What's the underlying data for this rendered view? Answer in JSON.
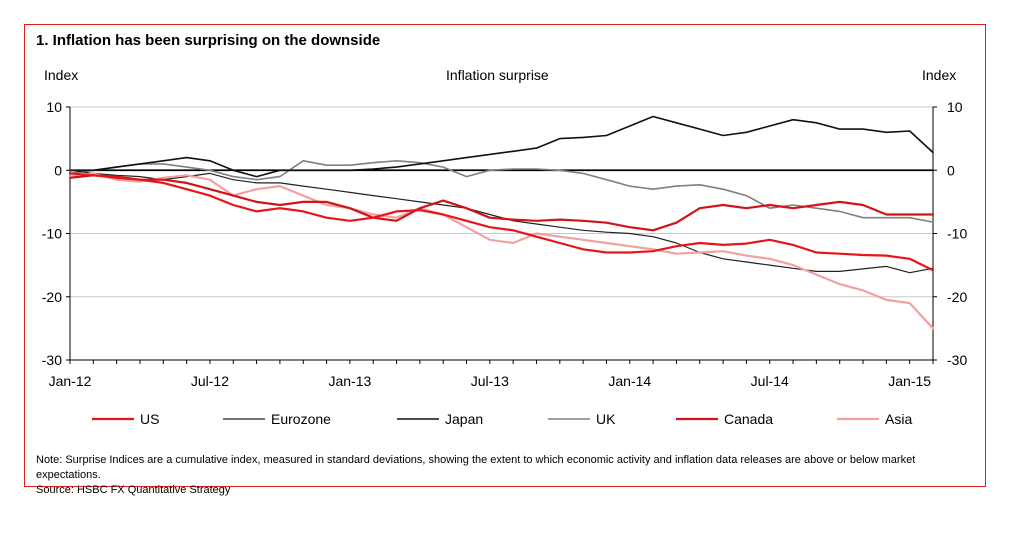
{
  "chart_data": {
    "type": "line",
    "title": "1. Inflation has been surprising on the downside",
    "subtitle": "Inflation surprise",
    "ylabel_left": "Index",
    "ylabel_right": "Index",
    "ylim": [
      -30,
      10
    ],
    "yticks": [
      10,
      0,
      -10,
      -20,
      -30
    ],
    "ytick_labels": [
      "10",
      "0",
      "-10",
      "-20",
      "-30"
    ],
    "xtick_labels": [
      "Jan-12",
      "Jul-12",
      "Jan-13",
      "Jul-13",
      "Jan-14",
      "Jul-14",
      "Jan-15"
    ],
    "x": [
      "Jan-12",
      "Feb-12",
      "Mar-12",
      "Apr-12",
      "May-12",
      "Jun-12",
      "Jul-12",
      "Aug-12",
      "Sep-12",
      "Oct-12",
      "Nov-12",
      "Dec-12",
      "Jan-13",
      "Feb-13",
      "Mar-13",
      "Apr-13",
      "May-13",
      "Jun-13",
      "Jul-13",
      "Aug-13",
      "Sep-13",
      "Oct-13",
      "Nov-13",
      "Dec-13",
      "Jan-14",
      "Feb-14",
      "Mar-14",
      "Apr-14",
      "May-14",
      "Jun-14",
      "Jul-14",
      "Aug-14",
      "Sep-14",
      "Oct-14",
      "Nov-14",
      "Dec-14",
      "Jan-15",
      "Feb-15"
    ],
    "grid": true,
    "legend_position": "bottom",
    "series": [
      {
        "name": "US",
        "color": "#e8141b",
        "width": 2.2,
        "values": [
          -0.5,
          -0.8,
          -1.2,
          -1.5,
          -2,
          -3,
          -4,
          -5.5,
          -6.5,
          -6,
          -6.5,
          -7.5,
          -8,
          -7.5,
          -6.5,
          -6.3,
          -7,
          -8,
          -9,
          -9.5,
          -10.5,
          -11.5,
          -12.5,
          -13,
          -13,
          -12.8,
          -12,
          -11.5,
          -11.8,
          -11.6,
          -11,
          -11.8,
          -13,
          -13.2,
          -13.4,
          -13.5,
          -14,
          -15.8
        ]
      },
      {
        "name": "Eurozone",
        "color": "#222222",
        "width": 1.2,
        "values": [
          0,
          -0.5,
          -0.8,
          -1,
          -1.5,
          -1,
          -0.5,
          -1.5,
          -2,
          -2,
          -2.5,
          -3,
          -3.5,
          -4,
          -4.5,
          -5,
          -5.5,
          -6,
          -7,
          -8,
          -8.5,
          -9,
          -9.5,
          -9.8,
          -10,
          -10.5,
          -11.5,
          -13,
          -14,
          -14.5,
          -15,
          -15.5,
          -16,
          -16,
          -15.6,
          -15.2,
          -16.2,
          -15.5
        ]
      },
      {
        "name": "Japan",
        "color": "#111111",
        "width": 1.6,
        "values": [
          0,
          0,
          0.5,
          1,
          1.5,
          2,
          1.5,
          0,
          -1,
          0,
          0,
          0,
          0,
          0.2,
          0.5,
          1,
          1.5,
          2,
          2.5,
          3,
          3.5,
          5,
          5.2,
          5.5,
          7,
          8.5,
          7.5,
          6.5,
          5.5,
          6,
          7,
          8,
          7.5,
          6.5,
          6.5,
          6,
          6.2,
          2.8
        ]
      },
      {
        "name": "UK",
        "color": "#808080",
        "width": 1.6,
        "values": [
          -0.5,
          0,
          0.5,
          1,
          1,
          0.5,
          0,
          -1,
          -1.5,
          -1,
          1.5,
          0.8,
          0.8,
          1.2,
          1.5,
          1.2,
          0.5,
          -1,
          0,
          0.2,
          0.2,
          0,
          -0.5,
          -1.5,
          -2.5,
          -3,
          -2.5,
          -2.3,
          -3,
          -4,
          -6,
          -5.5,
          -6,
          -6.5,
          -7.5,
          -7.5,
          -7.5,
          -8.2
        ]
      },
      {
        "name": "Canada",
        "color": "#d0141a",
        "width": 2.2,
        "values": [
          -1.2,
          -0.8,
          -1,
          -1.5,
          -1.5,
          -2,
          -3,
          -4,
          -5,
          -5.5,
          -5,
          -5,
          -6,
          -7.5,
          -8,
          -6,
          -4.8,
          -6,
          -7.5,
          -7.8,
          -8,
          -7.8,
          -8,
          -8.3,
          -9,
          -9.5,
          -8.3,
          -6,
          -5.5,
          -6,
          -5.5,
          -6,
          -5.5,
          -5,
          -5.5,
          -7,
          -7,
          -7
        ]
      },
      {
        "name": "Asia",
        "color": "#f3a0a0",
        "width": 2.2,
        "values": [
          -1,
          -0.5,
          -1.5,
          -1.8,
          -1.2,
          -0.8,
          -1.5,
          -4,
          -3,
          -2.5,
          -4,
          -5.5,
          -6,
          -7,
          -7.5,
          -6,
          -7,
          -9,
          -11,
          -11.5,
          -10,
          -10.5,
          -11,
          -11.5,
          -12,
          -12.5,
          -13.2,
          -13,
          -12.8,
          -13.5,
          -14,
          -15,
          -16.5,
          -18,
          -19,
          -20.5,
          -21,
          -25
        ]
      }
    ]
  }
}
